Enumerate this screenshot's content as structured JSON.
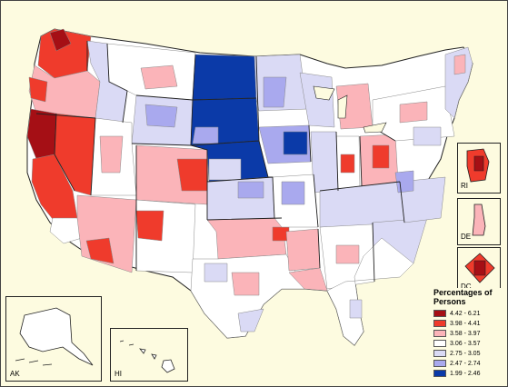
{
  "map": {
    "colors": {
      "background": "#fdfbe0",
      "state_border": "#222222",
      "county_border": "#888888",
      "ocean": "#fdfbe0"
    }
  },
  "insets": {
    "ri": "RI",
    "de": "DE",
    "dc": "DC",
    "ak": "AK",
    "hi": "HI"
  },
  "legend": {
    "title": "Percentages of Persons",
    "items": [
      {
        "label": "4.42 - 6.21",
        "color": "#a50f15"
      },
      {
        "label": "3.98 - 4.41",
        "color": "#ef3b2c"
      },
      {
        "label": "3.58 - 3.97",
        "color": "#fbb4b9"
      },
      {
        "label": "3.06 - 3.57",
        "color": "#ffffff"
      },
      {
        "label": "2.75 - 3.05",
        "color": "#dadaf5"
      },
      {
        "label": "2.47 - 2.74",
        "color": "#a9a9ee"
      },
      {
        "label": "1.99 - 2.46",
        "color": "#0b3aa8"
      }
    ]
  }
}
